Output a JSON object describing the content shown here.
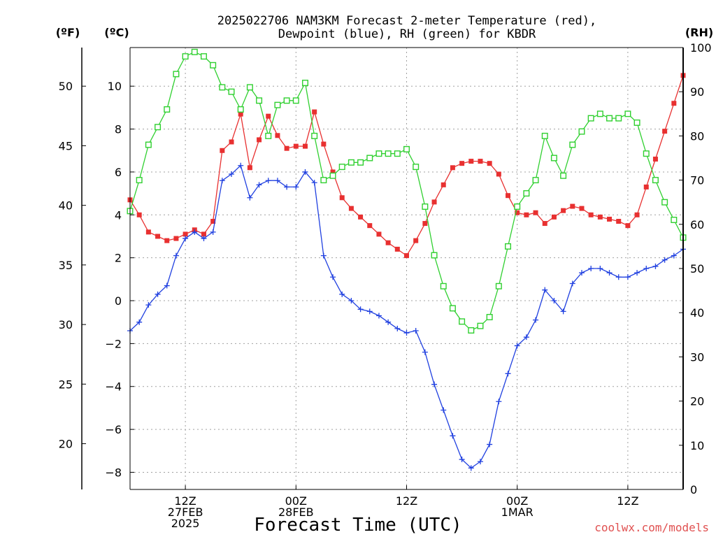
{
  "chart_data": {
    "type": "line",
    "title_lines": [
      "2025022706 NAM3KM Forecast 2-meter Temperature (red),",
      "Dewpoint (blue), RH (green) for KBDR"
    ],
    "xlabel": "Forecast Time (UTC)",
    "credit": "coolwx.com/models",
    "units": {
      "fahrenheit": "(ºF)",
      "celsius": "(ºC)",
      "rh": "(RH)"
    },
    "x_unit": "forecast hour",
    "xlim": [
      0,
      60
    ],
    "x_ticks": [
      {
        "x": 6,
        "lines": [
          "12Z",
          "27FEB",
          "2025"
        ]
      },
      {
        "x": 18,
        "lines": [
          "00Z",
          "28FEB"
        ]
      },
      {
        "x": 30,
        "lines": [
          "12Z"
        ]
      },
      {
        "x": 42,
        "lines": [
          "00Z",
          "1MAR"
        ]
      },
      {
        "x": 54,
        "lines": [
          "12Z"
        ]
      }
    ],
    "y_celsius": {
      "ylim": [
        -8.8,
        11.8
      ],
      "ticks": [
        -8,
        -6,
        -4,
        -2,
        0,
        2,
        4,
        6,
        8,
        10
      ]
    },
    "y_fahrenheit": {
      "ticks": [
        20,
        25,
        30,
        35,
        40,
        45,
        50
      ]
    },
    "y_rh": {
      "ylim": [
        0,
        100
      ],
      "ticks": [
        0,
        10,
        20,
        30,
        40,
        50,
        60,
        70,
        80,
        90,
        100
      ]
    },
    "grid": true,
    "series": [
      {
        "name": "Temperature",
        "axis": "celsius",
        "color": "#e83030",
        "marker": "filled-square",
        "values": [
          4.7,
          4.0,
          3.2,
          3.0,
          2.8,
          2.9,
          3.1,
          3.3,
          3.1,
          3.7,
          7.0,
          7.4,
          8.7,
          6.2,
          7.5,
          8.6,
          7.7,
          7.1,
          7.2,
          7.2,
          8.8,
          7.3,
          6.0,
          4.8,
          4.3,
          3.9,
          3.5,
          3.1,
          2.7,
          2.4,
          2.1,
          2.8,
          3.6,
          4.6,
          5.4,
          6.2,
          6.4,
          6.5,
          6.5,
          6.4,
          5.9,
          4.9,
          4.1,
          4.0,
          4.1,
          3.6,
          3.9,
          4.2,
          4.4,
          4.3,
          4.0,
          3.9,
          3.8,
          3.7,
          3.5,
          4.0,
          5.3,
          6.6,
          7.9,
          9.2,
          10.5
        ]
      },
      {
        "name": "Dewpoint",
        "axis": "celsius",
        "color": "#2040e0",
        "marker": "plus",
        "values": [
          -1.4,
          -1.0,
          -0.2,
          0.3,
          0.7,
          2.1,
          2.9,
          3.2,
          2.9,
          3.2,
          5.6,
          5.9,
          6.3,
          4.8,
          5.4,
          5.6,
          5.6,
          5.3,
          5.3,
          6.0,
          5.5,
          2.1,
          1.1,
          0.3,
          0.0,
          -0.4,
          -0.5,
          -0.7,
          -1.0,
          -1.3,
          -1.5,
          -1.4,
          -2.4,
          -3.9,
          -5.1,
          -6.3,
          -7.4,
          -7.8,
          -7.5,
          -6.7,
          -4.7,
          -3.4,
          -2.1,
          -1.7,
          -0.9,
          0.5,
          0.0,
          -0.5,
          0.8,
          1.3,
          1.5,
          1.5,
          1.3,
          1.1,
          1.1,
          1.3,
          1.5,
          1.6,
          1.9,
          2.1,
          2.4
        ]
      },
      {
        "name": "RH",
        "axis": "rh",
        "color": "#30d030",
        "marker": "open-square",
        "values": [
          63,
          70,
          78,
          82,
          86,
          94,
          98,
          99,
          98,
          96,
          91,
          90,
          86,
          91,
          88,
          80,
          87,
          88,
          88,
          92,
          80,
          70,
          71,
          73,
          74,
          74,
          75,
          76,
          76,
          76,
          77,
          73,
          64,
          53,
          46,
          41,
          38,
          36,
          37,
          39,
          46,
          55,
          64,
          67,
          70,
          80,
          75,
          71,
          78,
          81,
          84,
          85,
          84,
          84,
          85,
          83,
          76,
          70,
          65,
          61,
          57
        ]
      }
    ]
  }
}
